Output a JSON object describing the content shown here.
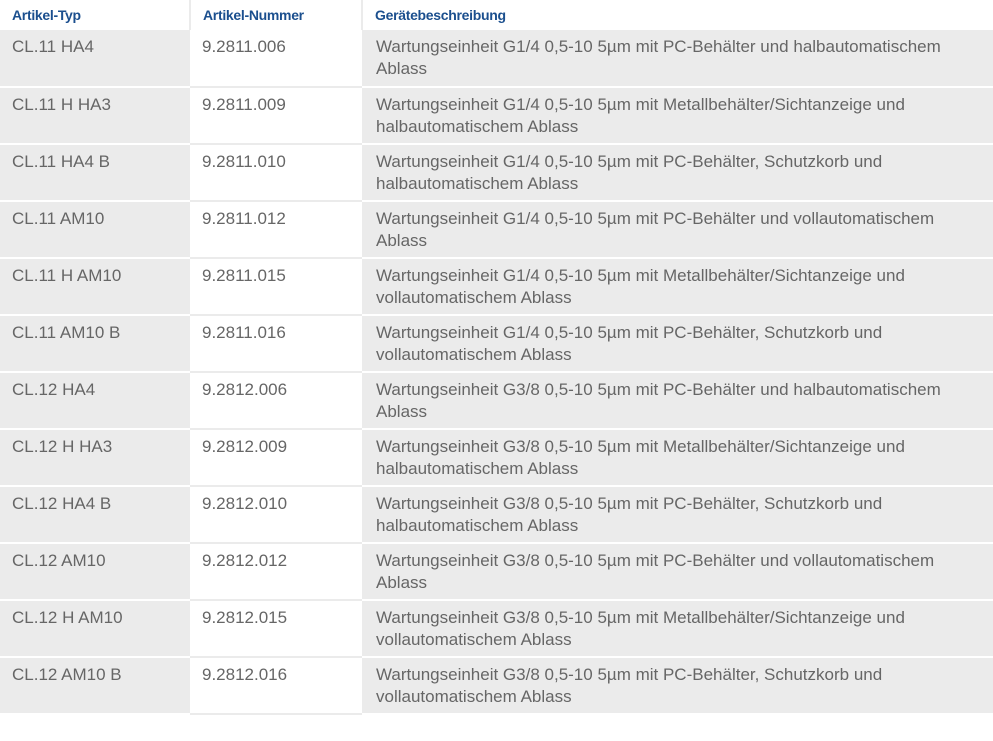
{
  "headers": [
    "Artikel-Typ",
    "Artikel-Nummer",
    "Gerätebeschreibung"
  ],
  "rows": [
    [
      "CL.11 HA4",
      "9.2811.006",
      "Wartungseinheit G1/4 0,5-10 5µm mit PC-Behälter und halbautomatischem Ablass"
    ],
    [
      "CL.11 H HA3",
      "9.2811.009",
      "Wartungseinheit G1/4 0,5-10 5µm mit Metallbehälter/Sichtanzeige und halbautomatischem Ablass"
    ],
    [
      "CL.11 HA4 B",
      "9.2811.010",
      "Wartungseinheit G1/4 0,5-10 5µm mit PC-Behälter, Schutzkorb und halbautomatischem Ablass"
    ],
    [
      "CL.11 AM10",
      "9.2811.012",
      "Wartungseinheit G1/4 0,5-10 5µm mit PC-Behälter und vollautomatischem Ablass"
    ],
    [
      "CL.11 H AM10",
      "9.2811.015",
      "Wartungseinheit G1/4 0,5-10 5µm mit Metallbehälter/Sichtanzeige und vollautomatischem Ablass"
    ],
    [
      "CL.11 AM10 B",
      "9.2811.016",
      "Wartungseinheit G1/4 0,5-10 5µm mit PC-Behälter, Schutzkorb und vollautomatischem Ablass"
    ],
    [
      "CL.12 HA4",
      "9.2812.006",
      "Wartungseinheit G3/8 0,5-10 5µm mit PC-Behälter und halbautomatischem Ablass"
    ],
    [
      "CL.12 H HA3",
      "9.2812.009",
      "Wartungseinheit G3/8 0,5-10 5µm mit Metallbehälter/Sichtanzeige und halbautomatischem Ablass"
    ],
    [
      "CL.12 HA4 B",
      "9.2812.010",
      "Wartungseinheit G3/8 0,5-10 5µm mit PC-Behälter, Schutzkorb und halbautomatischem Ablass"
    ],
    [
      "CL.12 AM10",
      "9.2812.012",
      "Wartungseinheit G3/8 0,5-10 5µm mit PC-Behälter und vollautomatischem Ablass"
    ],
    [
      "CL.12 H AM10",
      "9.2812.015",
      "Wartungseinheit G3/8 0,5-10 5µm mit Metallbehälter/Sichtanzeige und vollautomatischem Ablass"
    ],
    [
      "CL.12 AM10 B",
      "9.2812.016",
      "Wartungseinheit G3/8 0,5-10 5µm mit PC-Behälter, Schutzkorb und vollautomatischem Ablass"
    ]
  ],
  "colors": {
    "header_text": "#1b4f8e",
    "body_text": "#666666",
    "shaded_cell": "#ebebeb"
  }
}
